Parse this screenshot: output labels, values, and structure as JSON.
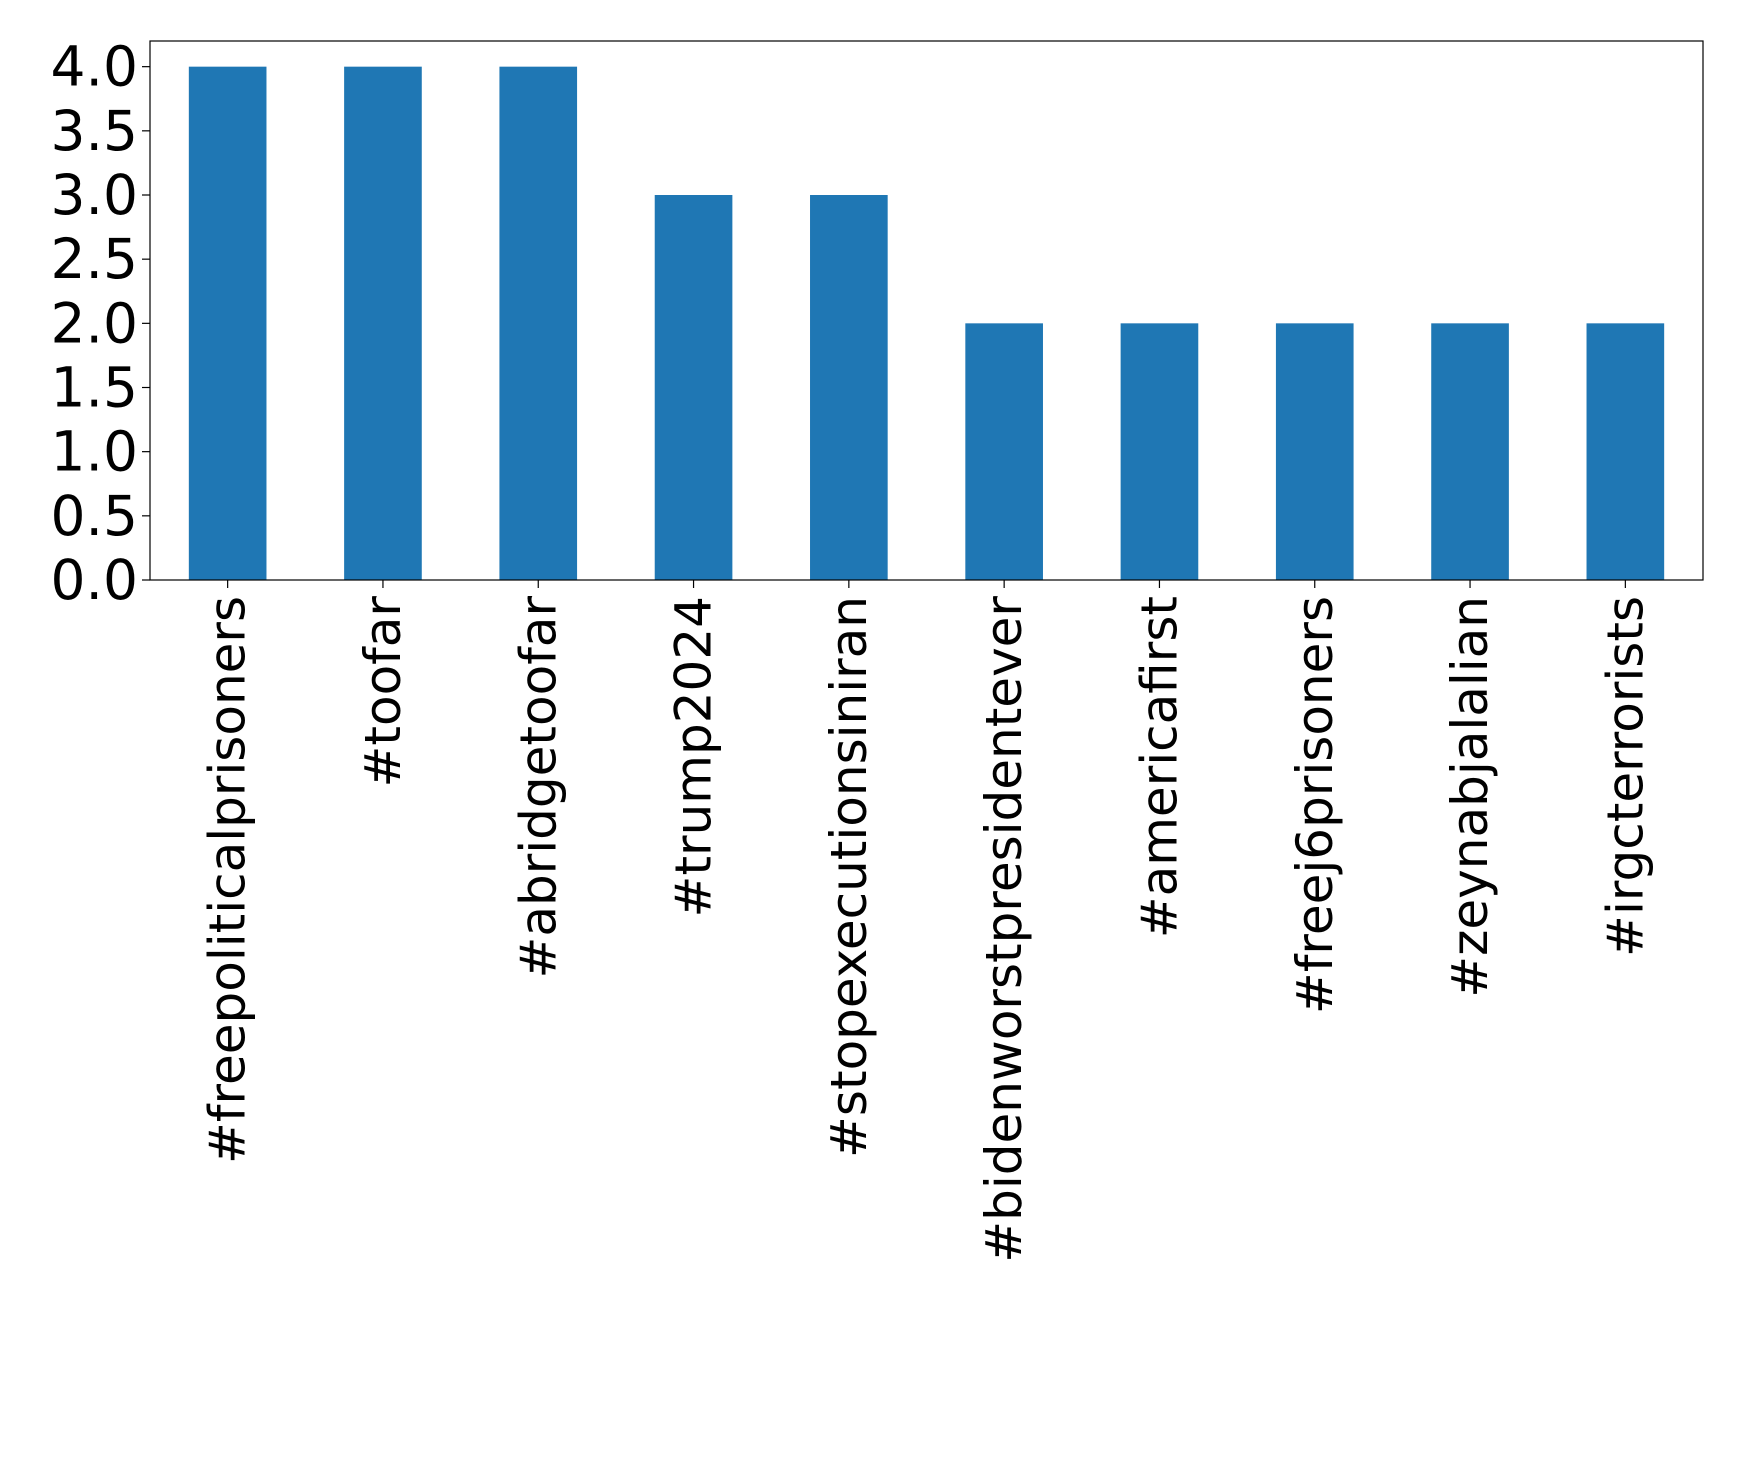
{
  "chart_data": {
    "type": "bar",
    "title": "",
    "xlabel": "",
    "ylabel": "",
    "categories": [
      "#freepoliticalprisoners",
      "#toofar",
      "#abridgetoofar",
      "#trump2024",
      "#stopexecutionsiniran",
      "#bidenworstpresidentever",
      "#americafirst",
      "#freej6prisoners",
      "#zeynabjalalian",
      "#irgcterrorists"
    ],
    "values": [
      4,
      4,
      4,
      3,
      3,
      2,
      2,
      2,
      2,
      2
    ],
    "ylim": [
      0,
      4.2
    ],
    "yticks": [
      "0.0",
      "0.5",
      "1.0",
      "1.5",
      "2.0",
      "2.5",
      "3.0",
      "3.5",
      "4.0"
    ],
    "bar_color": "#1f77b4",
    "grid": false,
    "legend": "none"
  }
}
